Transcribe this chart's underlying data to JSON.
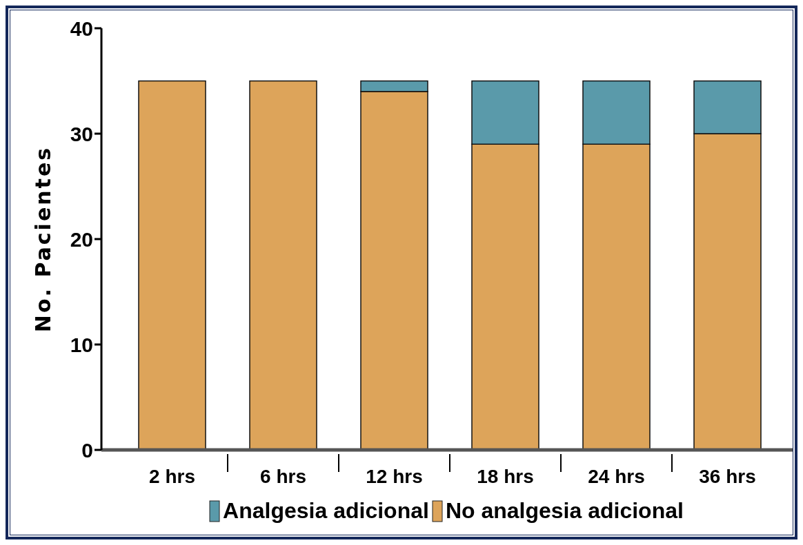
{
  "chart_data": {
    "type": "bar",
    "ylabel": "No. Pacientes",
    "categories": [
      "2 hrs",
      "6 hrs",
      "12 hrs",
      "18 hrs",
      "24 hrs",
      "36 hrs"
    ],
    "stacked": true,
    "series": [
      {
        "name": "No analgesia adicional",
        "color": "#dda45a",
        "values": [
          35,
          35,
          34,
          29,
          29,
          30
        ]
      },
      {
        "name": "Analgesia adicional",
        "color": "#5a9aaa",
        "values": [
          0,
          0,
          1,
          6,
          6,
          5
        ]
      }
    ],
    "ylim": [
      0,
      40
    ],
    "yticks": [
      0,
      10,
      20,
      30,
      40
    ],
    "legend": "bottom"
  }
}
